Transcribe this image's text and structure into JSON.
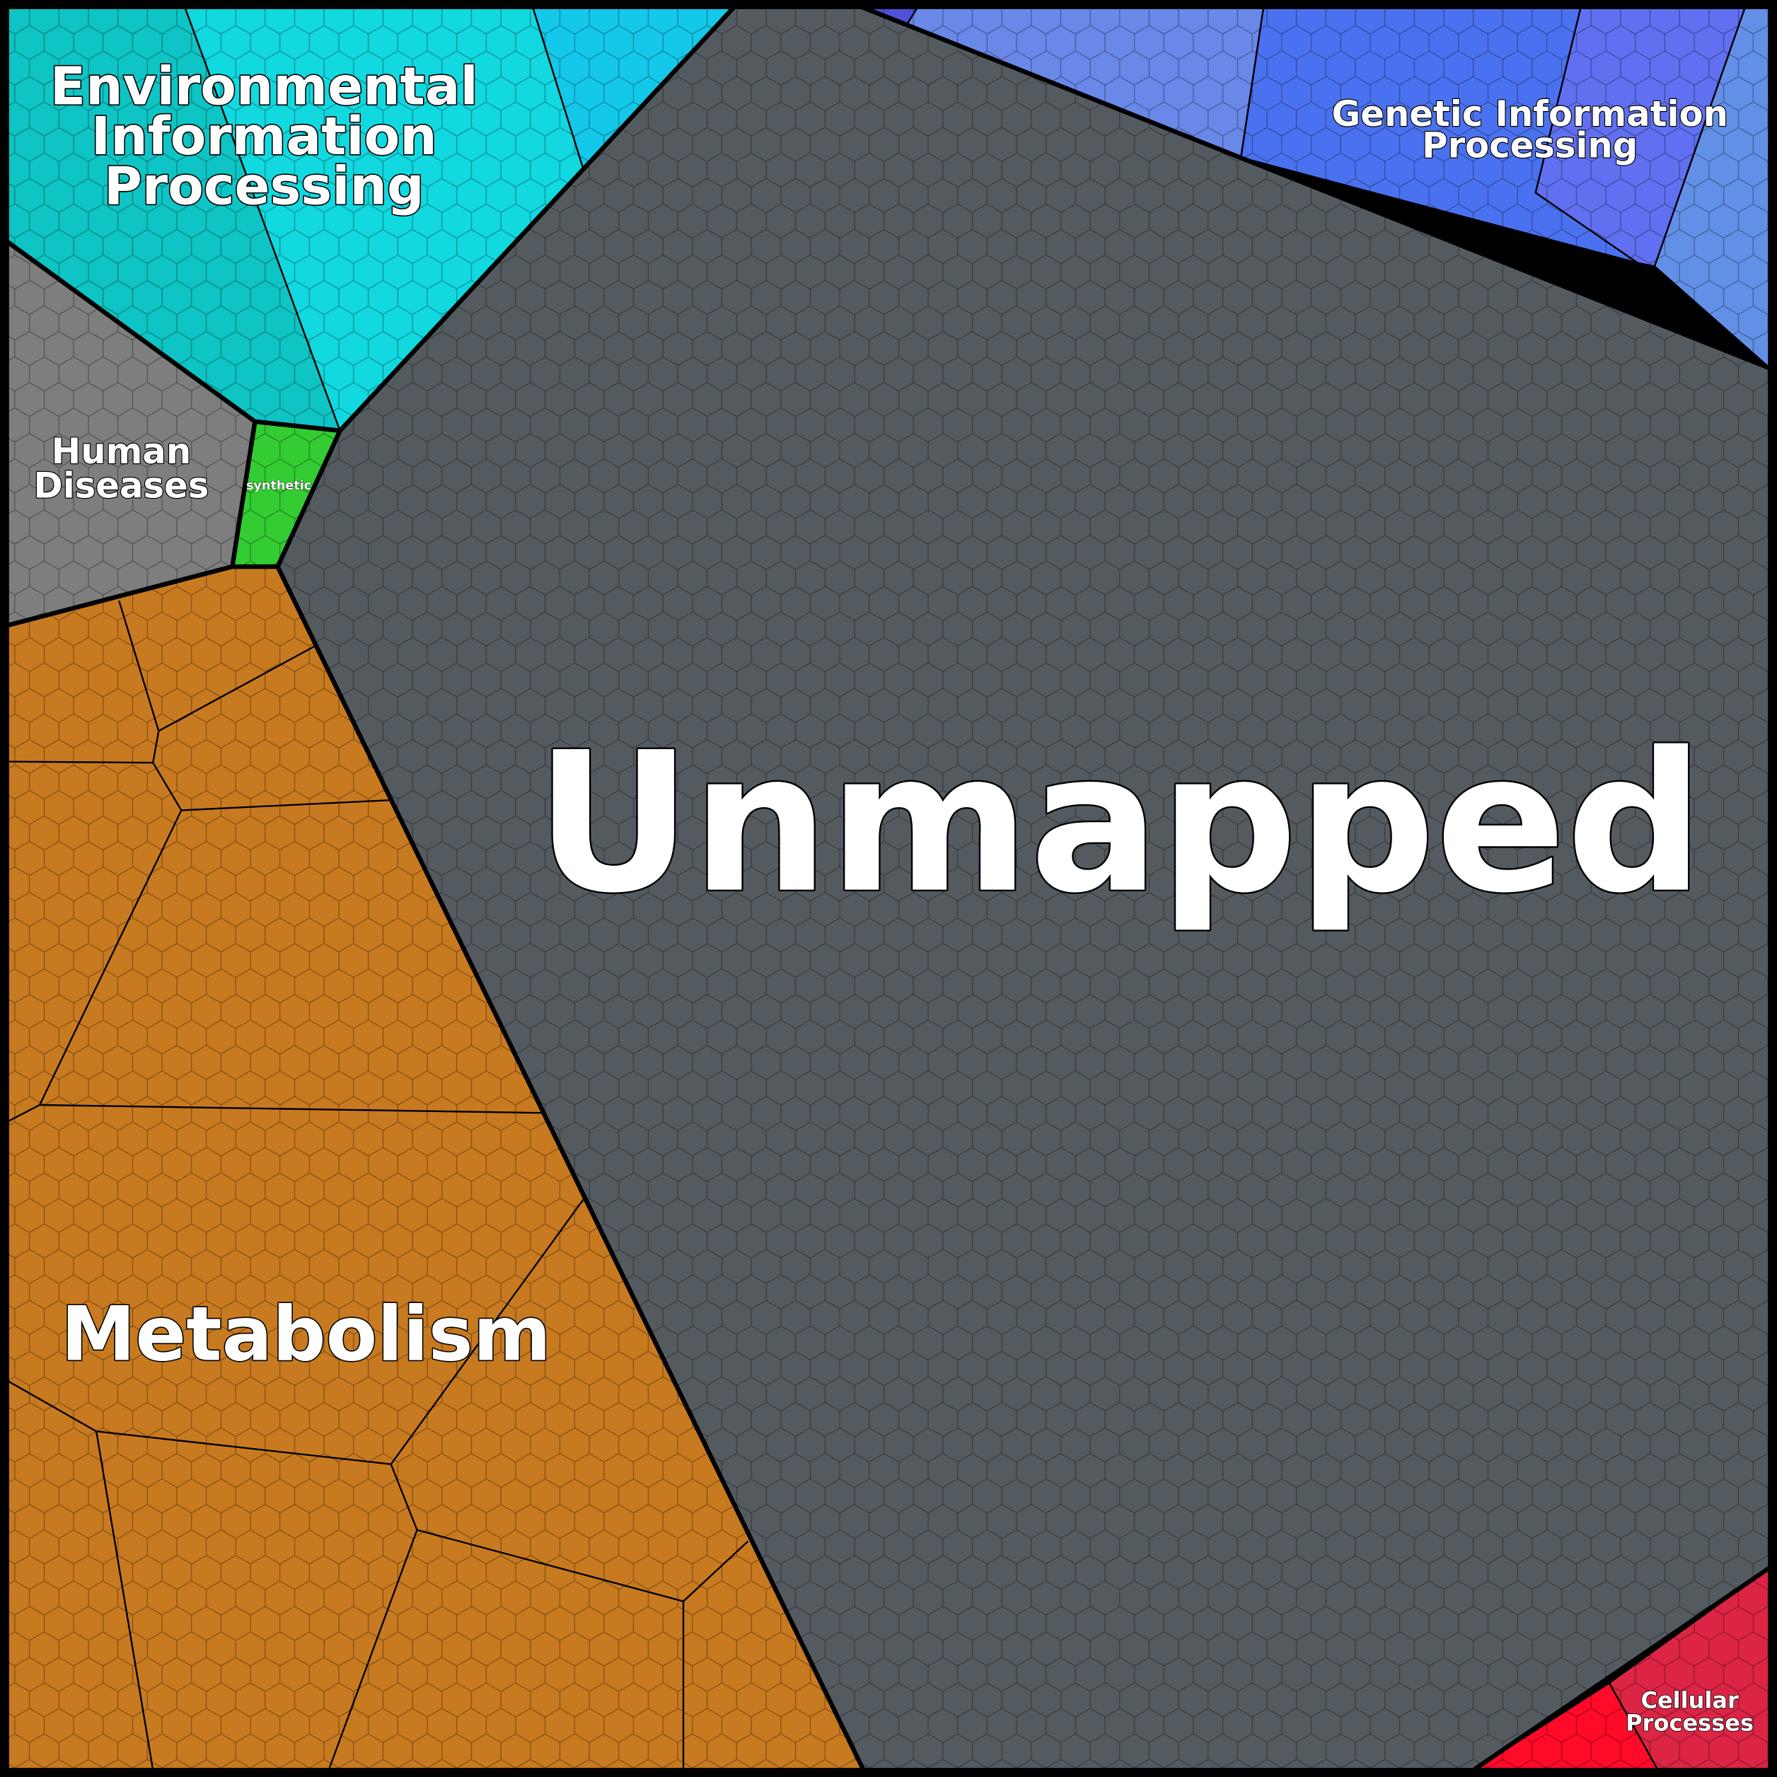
{
  "chart_data": {
    "type": "voronoi-treemap",
    "regions": [
      {
        "id": "unmapped",
        "label": "Unmapped",
        "color": "#545b60"
      },
      {
        "id": "metabolism",
        "label": "Metabolism",
        "color": "#c87a20"
      },
      {
        "id": "environmental",
        "label": "Environmental Information Processing",
        "lines": [
          "Environmental",
          "Information",
          "Processing"
        ],
        "colors": [
          "#0ec4c4",
          "#12d8e0",
          "#14c8ea"
        ]
      },
      {
        "id": "genetic",
        "label": "Genetic Information Processing",
        "lines": [
          "Genetic Information",
          "Processing"
        ],
        "colors": [
          "#5050d8",
          "#6a88e8",
          "#4a72f0",
          "#6070f0",
          "#6290e6"
        ]
      },
      {
        "id": "human-diseases",
        "label": "Human Diseases",
        "lines": [
          "Human",
          "Diseases"
        ],
        "color": "#7e7e7e"
      },
      {
        "id": "synthetic",
        "label": "synthetic",
        "color": "#33cc33"
      },
      {
        "id": "cellular",
        "label": "Cellular Processes",
        "lines": [
          "Cellular",
          "Processes"
        ],
        "colors": [
          "#dc2444",
          "#ff0a28"
        ]
      }
    ]
  }
}
